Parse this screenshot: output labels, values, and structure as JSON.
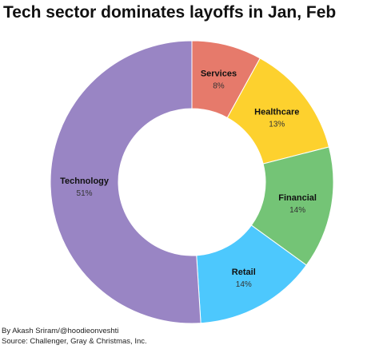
{
  "title": "Tech sector dominates layoffs in Jan, Feb",
  "footer": {
    "byline": "By Akash Sriram/@hoodieonveshti",
    "source": "Source: Challenger, Gray & Christmas, Inc."
  },
  "chart_data": {
    "type": "pie",
    "donut": true,
    "title": "Tech sector dominates layoffs in Jan, Feb",
    "start_angle_deg": 0,
    "direction": "clockwise",
    "slices": [
      {
        "label": "Services",
        "value_label": "8%",
        "value": 8,
        "color": "#e67a6b"
      },
      {
        "label": "Healthcare",
        "value_label": "13%",
        "value": 13,
        "color": "#fdd12e"
      },
      {
        "label": "Financial",
        "value_label": "14%",
        "value": 14,
        "color": "#74c476"
      },
      {
        "label": "Retail",
        "value_label": "14%",
        "value": 14,
        "color": "#4dc8fd"
      },
      {
        "label": "Technology",
        "value_label": "51%",
        "value": 51,
        "color": "#9985c4"
      }
    ]
  }
}
